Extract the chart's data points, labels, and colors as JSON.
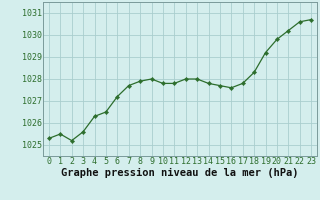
{
  "x": [
    0,
    1,
    2,
    3,
    4,
    5,
    6,
    7,
    8,
    9,
    10,
    11,
    12,
    13,
    14,
    15,
    16,
    17,
    18,
    19,
    20,
    21,
    22,
    23
  ],
  "y": [
    1025.3,
    1025.5,
    1025.2,
    1025.6,
    1026.3,
    1026.5,
    1027.2,
    1027.7,
    1027.9,
    1028.0,
    1027.8,
    1027.8,
    1028.0,
    1028.0,
    1027.8,
    1027.7,
    1027.6,
    1027.8,
    1028.3,
    1029.2,
    1029.8,
    1030.2,
    1030.6,
    1030.7
  ],
  "line_color": "#2d6e2d",
  "marker": "D",
  "marker_size": 2.2,
  "bg_color": "#d4eeed",
  "grid_color": "#aacece",
  "title": "Graphe pression niveau de la mer (hPa)",
  "ylim": [
    1024.5,
    1031.5
  ],
  "xlim": [
    -0.5,
    23.5
  ],
  "yticks": [
    1025,
    1026,
    1027,
    1028,
    1029,
    1030,
    1031
  ],
  "xtick_labels": [
    "0",
    "1",
    "2",
    "3",
    "4",
    "5",
    "6",
    "7",
    "8",
    "9",
    "10",
    "11",
    "12",
    "13",
    "14",
    "15",
    "16",
    "17",
    "18",
    "19",
    "20",
    "21",
    "22",
    "23"
  ],
  "title_fontsize": 7.5,
  "tick_fontsize": 6.0,
  "tick_color": "#2d6e2d",
  "spine_color": "#7a9a9a"
}
